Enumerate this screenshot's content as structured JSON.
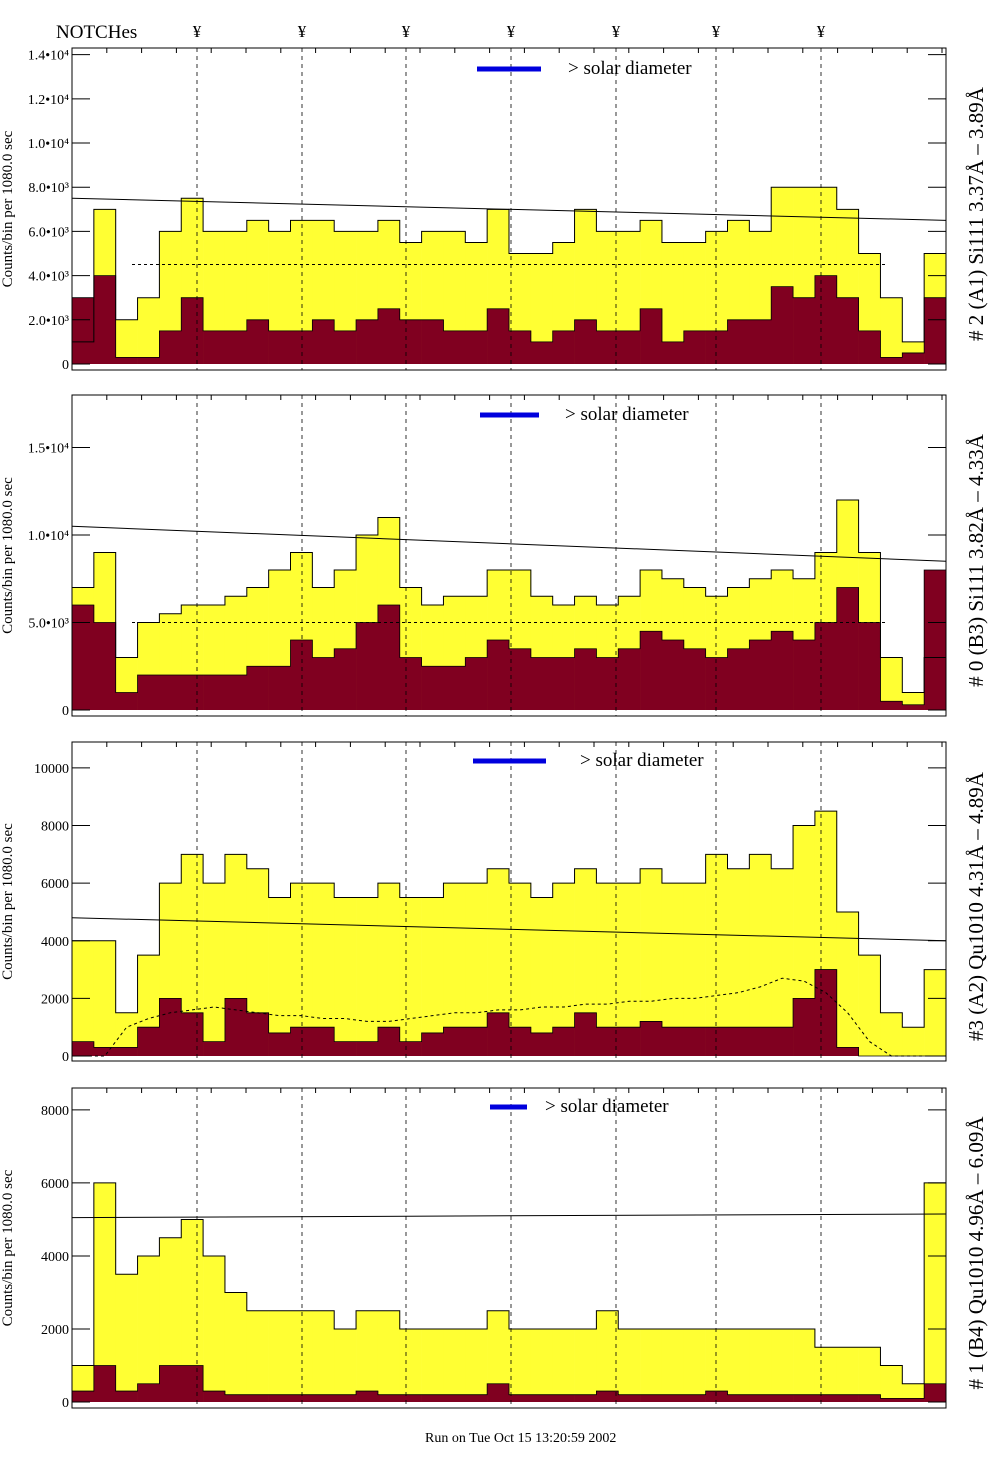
{
  "header": {
    "notches_label": "NOTCHes",
    "notch_symbol": "¥"
  },
  "footer": {
    "run_stamp": "Run on Tue Oct 15 13:20:59 2002"
  },
  "colors": {
    "total_fill": "#ffff33",
    "subset_fill": "#800020",
    "solar_bar": "#0000dd",
    "annotation_blue": "#0000cc",
    "annotation_purple": "#660066"
  },
  "chart_data": [
    {
      "type": "bar",
      "title": "# 2 (A1) Si111  3.37Å – 3.89Å",
      "ylabel": "Counts/bin per   1080.0 sec",
      "legend": "> solar diameter",
      "ylim": [
        0,
        14300
      ],
      "yticks": [
        {
          "v": 0,
          "label": "0"
        },
        {
          "v": 2000,
          "label": "2.0•10³"
        },
        {
          "v": 4000,
          "label": "4.0•10³"
        },
        {
          "v": 6000,
          "label": "6.0•10³"
        },
        {
          "v": 8000,
          "label": "8.0•10³"
        },
        {
          "v": 10000,
          "label": "1.0•10⁴"
        },
        {
          "v": 12000,
          "label": "1.2•10⁴"
        },
        {
          "v": 14000,
          "label": "1.4•10⁴"
        }
      ],
      "series": [
        {
          "values": [
            1000,
            7000,
            2000,
            3000,
            6000,
            7500,
            6000,
            6000,
            6500,
            6000,
            6500,
            6500,
            6000,
            6000,
            6500,
            5500,
            6000,
            6000,
            5500,
            7000,
            5000,
            5000,
            5500,
            7000,
            6000,
            6000,
            6500,
            5500,
            5500,
            6000,
            6500,
            6000,
            8000,
            8000,
            8000,
            7000,
            5000,
            3000,
            1000,
            5000
          ]
        },
        {
          "values": [
            3000,
            4000,
            300,
            300,
            1500,
            3000,
            1500,
            1500,
            2000,
            1500,
            1500,
            2000,
            1500,
            2000,
            2500,
            2000,
            2000,
            1500,
            1500,
            2500,
            1500,
            1000,
            1500,
            2000,
            1500,
            1500,
            2500,
            1000,
            1500,
            1500,
            2000,
            2000,
            3500,
            3000,
            4000,
            3000,
            1500,
            300,
            500,
            3000
          ]
        }
      ],
      "fit_line": [
        7500,
        6500
      ],
      "dashed_level": 4500
    },
    {
      "type": "bar",
      "title": "# 0 (B3) Si111  3.82Å – 4.33Å",
      "ylabel": "Counts/bin per   1080.0 sec",
      "legend": "> solar diameter",
      "ylim": [
        0,
        18000
      ],
      "yticks": [
        {
          "v": 0,
          "label": "0"
        },
        {
          "v": 5000,
          "label": "5.0•10³"
        },
        {
          "v": 10000,
          "label": "1.0•10⁴"
        },
        {
          "v": 15000,
          "label": "1.5•10⁴"
        }
      ],
      "series": [
        {
          "values": [
            7000,
            9000,
            3000,
            5000,
            5500,
            6000,
            6000,
            6500,
            7000,
            8000,
            9000,
            7000,
            8000,
            10000,
            11000,
            7000,
            6000,
            6500,
            6500,
            8000,
            8000,
            6500,
            6000,
            6500,
            6000,
            6500,
            8000,
            7500,
            7000,
            6500,
            7000,
            7500,
            8000,
            7500,
            9000,
            12000,
            9000,
            3000,
            1000,
            3000
          ]
        },
        {
          "values": [
            6000,
            5000,
            1000,
            2000,
            2000,
            2000,
            2000,
            2000,
            2500,
            2500,
            4000,
            3000,
            3500,
            5000,
            6000,
            3000,
            2500,
            2500,
            3000,
            4000,
            3500,
            3000,
            3000,
            3500,
            3000,
            3500,
            4500,
            4000,
            3500,
            3000,
            3500,
            4000,
            4500,
            4000,
            5000,
            7000,
            5000,
            500,
            300,
            8000
          ]
        }
      ],
      "fit_line": [
        10500,
        8500
      ],
      "dashed_level": 5000
    },
    {
      "type": "bar",
      "title": "#3 (A2) Qu1010  4.31Å – 4.89Å",
      "ylabel": "Counts/bin per   1080.0 sec",
      "legend": "> solar diameter",
      "ylim": [
        0,
        10900
      ],
      "yticks": [
        {
          "v": 0,
          "label": "0"
        },
        {
          "v": 2000,
          "label": "2000"
        },
        {
          "v": 4000,
          "label": "4000"
        },
        {
          "v": 6000,
          "label": "6000"
        },
        {
          "v": 8000,
          "label": "8000"
        },
        {
          "v": 10000,
          "label": "10000"
        }
      ],
      "series": [
        {
          "values": [
            4000,
            4000,
            1500,
            3500,
            6000,
            7000,
            6000,
            7000,
            6500,
            5500,
            6000,
            6000,
            5500,
            5500,
            6000,
            5500,
            5500,
            6000,
            6000,
            6500,
            6000,
            5500,
            6000,
            6500,
            6000,
            6000,
            6500,
            6000,
            6000,
            7000,
            6500,
            7000,
            6500,
            8000,
            8500,
            5000,
            3500,
            1500,
            1000,
            3000
          ]
        },
        {
          "values": [
            500,
            300,
            300,
            1000,
            2000,
            1500,
            500,
            2000,
            1500,
            800,
            1000,
            1000,
            500,
            500,
            1000,
            500,
            800,
            1000,
            1000,
            1500,
            1000,
            800,
            1000,
            1500,
            1000,
            1000,
            1200,
            1000,
            1000,
            1000,
            1000,
            1000,
            1000,
            2000,
            3000,
            300,
            0,
            0,
            0,
            0
          ]
        }
      ],
      "fit_line": [
        4800,
        4000
      ],
      "dashed_curve": [
        0,
        0,
        1000,
        1300,
        1500,
        1600,
        1700,
        1600,
        1500,
        1400,
        1400,
        1300,
        1300,
        1200,
        1200,
        1300,
        1400,
        1500,
        1500,
        1600,
        1600,
        1700,
        1700,
        1800,
        1800,
        1900,
        1900,
        2000,
        2000,
        2100,
        2200,
        2400,
        2700,
        2600,
        2200,
        1500,
        500,
        0,
        0,
        0
      ]
    },
    {
      "type": "bar",
      "title": "# 1 (B4) Qu1010 4.96Å – 6.09Å",
      "ylabel": "Counts/bin per   1080.0 sec",
      "legend": "> solar diameter",
      "ylim": [
        0,
        8600
      ],
      "yticks": [
        {
          "v": 0,
          "label": "0"
        },
        {
          "v": 2000,
          "label": "2000"
        },
        {
          "v": 4000,
          "label": "4000"
        },
        {
          "v": 6000,
          "label": "6000"
        },
        {
          "v": 8000,
          "label": "8000"
        }
      ],
      "series": [
        {
          "values": [
            1000,
            6000,
            3500,
            4000,
            4500,
            5000,
            4000,
            3000,
            2500,
            2500,
            2500,
            2500,
            2000,
            2500,
            2500,
            2000,
            2000,
            2000,
            2000,
            2500,
            2000,
            2000,
            2000,
            2000,
            2500,
            2000,
            2000,
            2000,
            2000,
            2000,
            2000,
            2000,
            2000,
            2000,
            1500,
            1500,
            1500,
            1000,
            500,
            6000
          ]
        },
        {
          "values": [
            300,
            1000,
            300,
            500,
            1000,
            1000,
            300,
            200,
            200,
            200,
            200,
            200,
            200,
            300,
            200,
            200,
            200,
            200,
            200,
            500,
            200,
            200,
            200,
            200,
            300,
            200,
            200,
            200,
            200,
            300,
            200,
            200,
            200,
            200,
            200,
            200,
            200,
            100,
            100,
            500
          ]
        }
      ],
      "fit_line": [
        5050,
        5150
      ]
    }
  ]
}
